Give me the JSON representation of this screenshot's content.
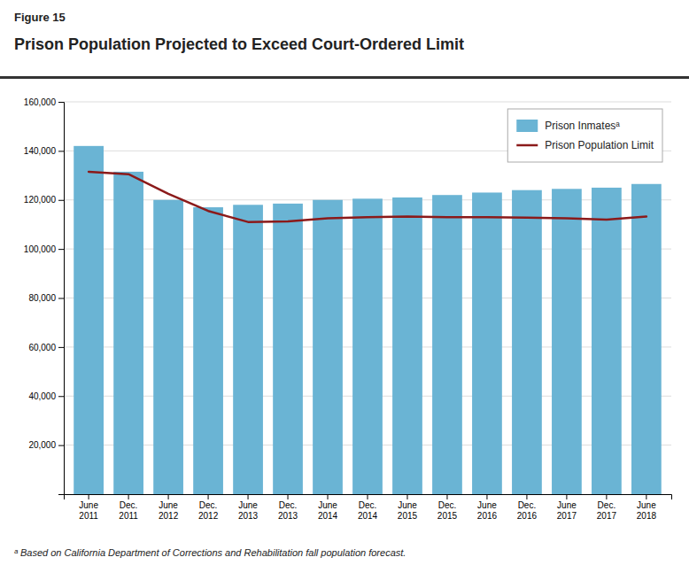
{
  "chart_data": {
    "type": "bar",
    "title": "Prison Population Projected to Exceed Court-Ordered Limit",
    "annotations": [
      "Figure 15",
      "ᵃ Based on California Department of Corrections and Rehabilitation fall population forecast."
    ],
    "categories": [
      "June\n2011",
      "Dec.\n2011",
      "June\n2012",
      "Dec.\n2012",
      "June\n2013",
      "Dec.\n2013",
      "June\n2014",
      "Dec.\n2014",
      "June\n2015",
      "Dec.\n2015",
      "June\n2016",
      "Dec.\n2016",
      "June\n2017",
      "Dec.\n2017",
      "June\n2018"
    ],
    "series": [
      {
        "name": "Prison Inmatesᵃ",
        "type": "bar",
        "color": "#6ab4d4",
        "values": [
          142000,
          131500,
          120000,
          117000,
          118000,
          118500,
          120000,
          120500,
          121000,
          122000,
          123000,
          124000,
          124500,
          125000,
          126500
        ]
      },
      {
        "name": "Prison Population Limit",
        "type": "line",
        "color": "#8b1a1a",
        "values": [
          131500,
          130500,
          122500,
          115500,
          111000,
          111200,
          112500,
          113000,
          113200,
          113000,
          113000,
          112800,
          112500,
          112000,
          113200
        ]
      }
    ],
    "ylim": [
      0,
      160000
    ],
    "yticks": [
      {
        "value": 20000,
        "label": "20,000"
      },
      {
        "value": 40000,
        "label": "40,000"
      },
      {
        "value": 60000,
        "label": "60,000"
      },
      {
        "value": 80000,
        "label": "80,000"
      },
      {
        "value": 100000,
        "label": "100,000"
      },
      {
        "value": 120000,
        "label": "120,000"
      },
      {
        "value": 140000,
        "label": "140,000"
      },
      {
        "value": 160000,
        "label": "160,000"
      }
    ],
    "grid": true,
    "legend": "upper right"
  }
}
